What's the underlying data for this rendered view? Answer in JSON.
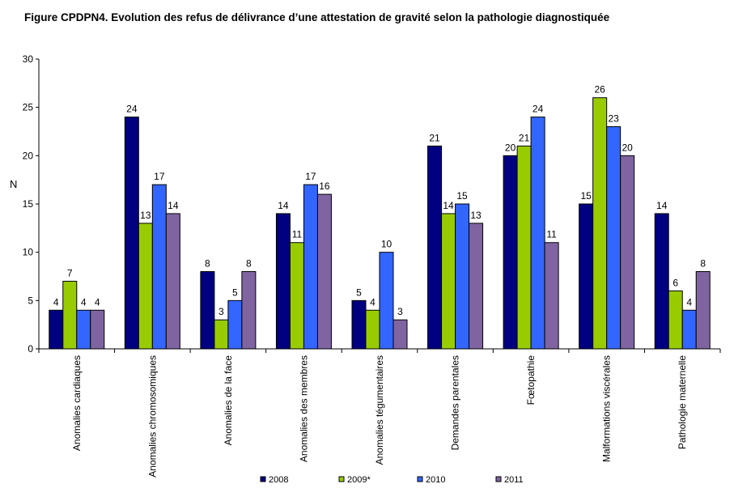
{
  "figure_title": "Figure CPDPN4. Evolution des refus de délivrance d’une attestation de gravité selon la pathologie diagnostiquée",
  "chart_data": {
    "type": "bar",
    "ylabel": "N",
    "xlabel": "",
    "ylim": [
      0,
      30
    ],
    "yticks": [
      0,
      5,
      10,
      15,
      20,
      25,
      30
    ],
    "grid": false,
    "legend_position": "bottom",
    "categories": [
      "Anomalies cardiaques",
      "Anomalies chromosomiques",
      "Anomalies de la face",
      "Anomalies des membres",
      "Anomalies tégumentaires",
      "Demandes parentales",
      "Fœtopathie",
      "Malformations viscérales",
      "Pathologie maternelle"
    ],
    "series": [
      {
        "name": "2008",
        "color": "#000080",
        "values": [
          4,
          24,
          8,
          14,
          5,
          21,
          20,
          15,
          14
        ]
      },
      {
        "name": "2009*",
        "color": "#99CC00",
        "values": [
          7,
          13,
          3,
          11,
          4,
          14,
          21,
          26,
          6
        ]
      },
      {
        "name": "2010",
        "color": "#3366FF",
        "values": [
          4,
          17,
          5,
          17,
          10,
          15,
          24,
          23,
          4
        ]
      },
      {
        "name": "2011",
        "color": "#8064A2",
        "values": [
          4,
          14,
          8,
          16,
          3,
          13,
          11,
          20,
          8
        ]
      }
    ]
  }
}
